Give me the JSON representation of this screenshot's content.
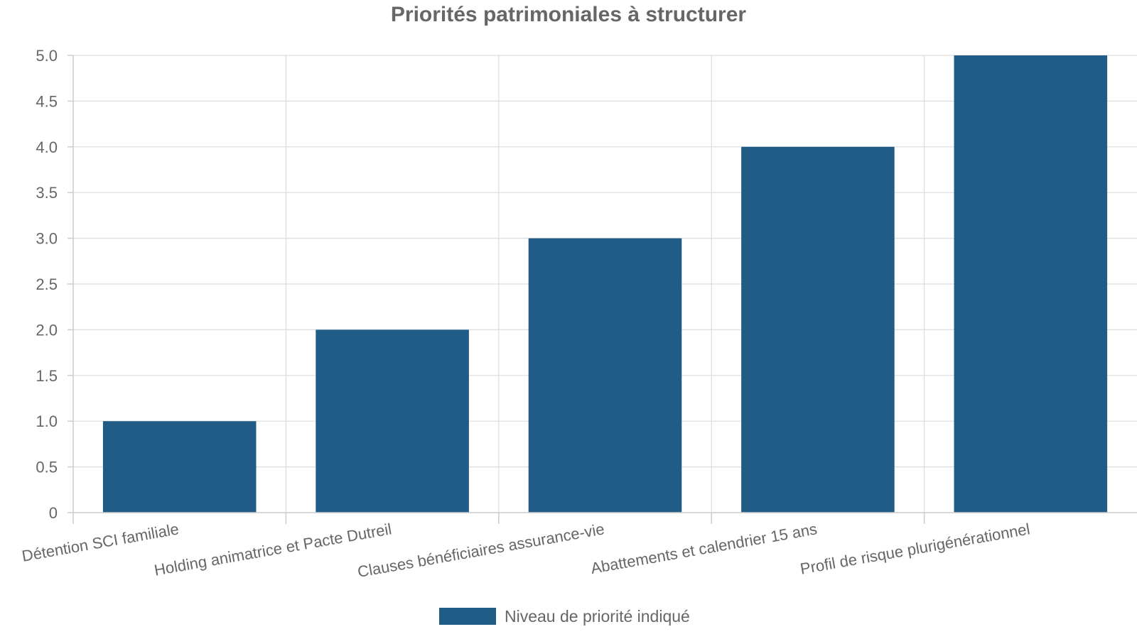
{
  "chart_data": {
    "type": "bar",
    "title": "Priorités patrimoniales à structurer",
    "xlabel": "",
    "ylabel": "",
    "categories": [
      "Détention SCI familiale",
      "Holding animatrice et Pacte Dutreil",
      "Clauses bénéficiaires assurance-vie",
      "Abattements et calendrier 15 ans",
      "Profil de risque plurigénérationnel"
    ],
    "series": [
      {
        "name": "Niveau de priorité indiqué",
        "values": [
          1,
          2,
          3,
          4,
          5
        ],
        "color": "#205c86"
      }
    ],
    "ylim": [
      0,
      5
    ],
    "yticks": [
      "0",
      "0.5",
      "1.0",
      "1.5",
      "2.0",
      "2.5",
      "3.0",
      "3.5",
      "4.0",
      "4.5",
      "5.0"
    ],
    "grid": true,
    "legend_position": "bottom-center"
  }
}
